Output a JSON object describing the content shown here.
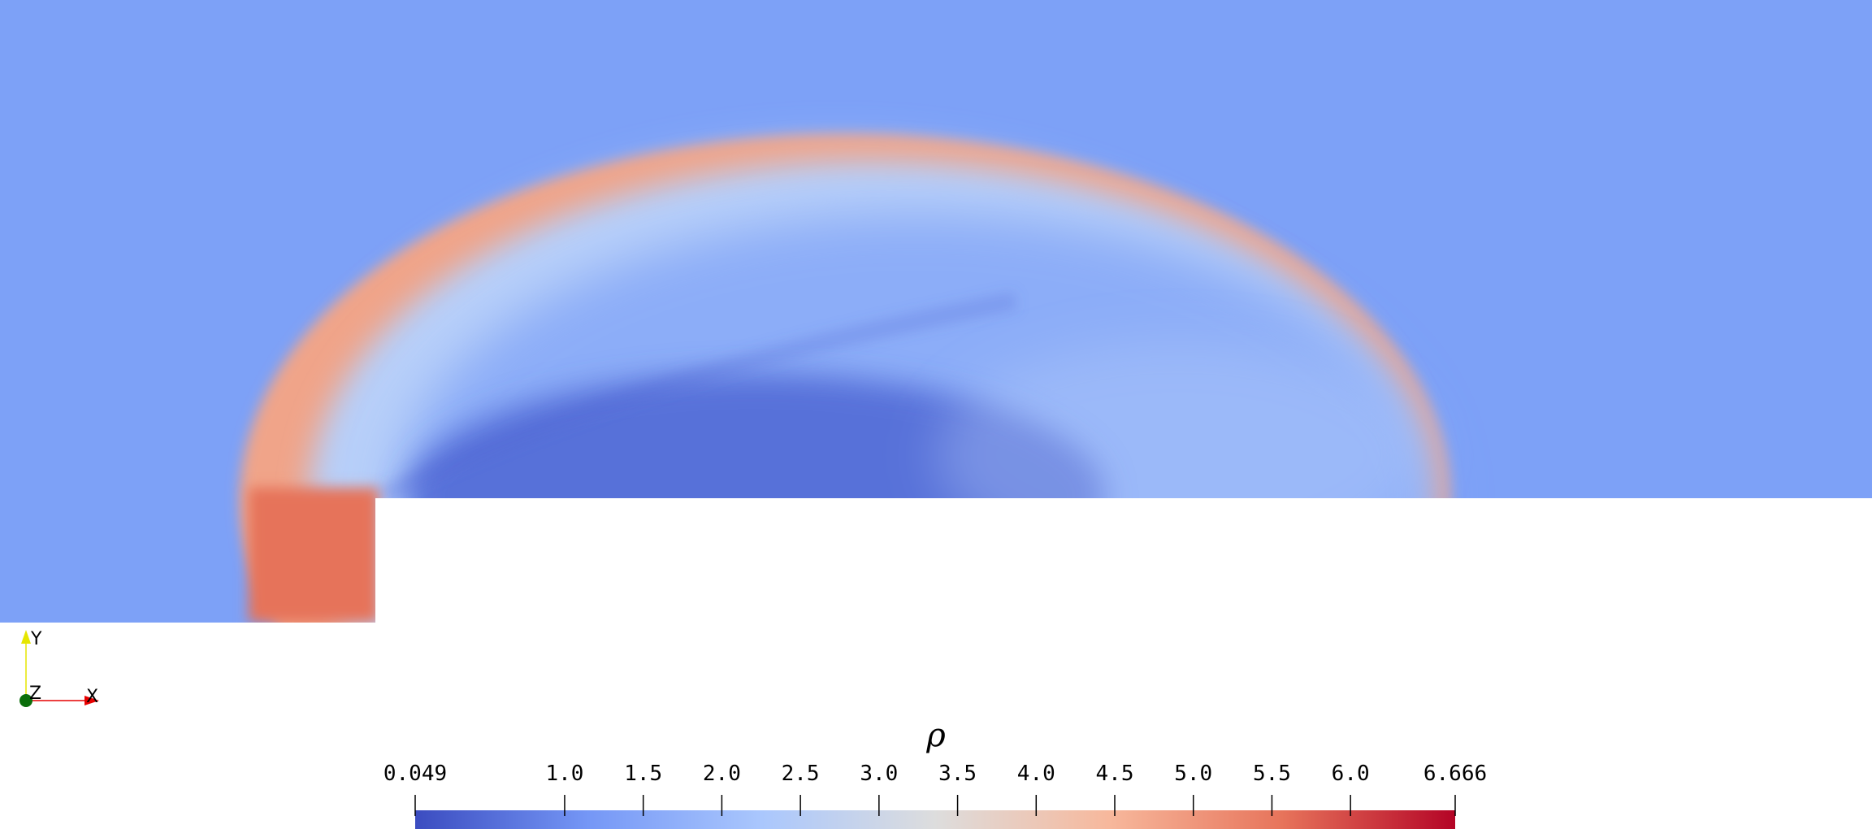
{
  "colorbar": {
    "title": "ρ",
    "min_label": "0.049",
    "max_label": "6.666",
    "tick_labels": [
      "1.0",
      "1.5",
      "2.0",
      "2.5",
      "3.0",
      "3.5",
      "4.0",
      "4.5",
      "5.0",
      "5.5",
      "6.0"
    ],
    "range": [
      0.049,
      6.666
    ],
    "tick_values": [
      0.049,
      1.0,
      1.5,
      2.0,
      2.5,
      3.0,
      3.5,
      4.0,
      4.5,
      5.0,
      5.5,
      6.0,
      6.666
    ],
    "colormap": [
      "#3b4cc0",
      "#7597f6",
      "#aac7fd",
      "#dddddd",
      "#f7b89c",
      "#e7745b",
      "#b40426"
    ]
  },
  "orientation_axes": {
    "y_label": "Y",
    "z_label": "Z",
    "x_label": "X",
    "y_color": "#e6e600",
    "x_color": "#e60000",
    "z_color": "#0b6e0b"
  },
  "field_colors": {
    "freestream": "#7da1f7",
    "shocked_gas": "#e6735a",
    "shock_front": "#f0a489",
    "expansion_core": "#4a62d2",
    "post_shock_light": "#b7cff9"
  }
}
